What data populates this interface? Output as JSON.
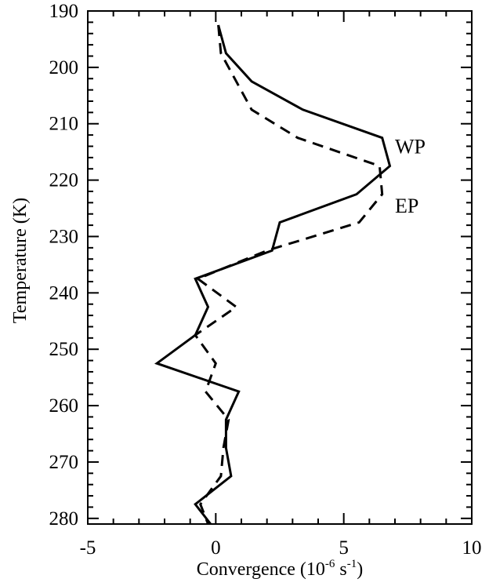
{
  "chart_data": {
    "type": "line",
    "xlabel": "Convergence (10",
    "xlabel_sup1": "-6",
    "xlabel_mid": " s",
    "xlabel_sup2": "-1",
    "xlabel_end": ")",
    "ylabel": "Temperature (K)",
    "xlim": [
      -5,
      10
    ],
    "ylim": [
      190,
      281
    ],
    "y_inverted": true,
    "x_major_ticks": [
      -5,
      0,
      5,
      10
    ],
    "x_minor_step": 1,
    "y_major_ticks": [
      190,
      200,
      210,
      220,
      230,
      240,
      250,
      260,
      270,
      280
    ],
    "y_minor_step": 2,
    "grid": false,
    "series": [
      {
        "name": "WP",
        "style": "solid",
        "color": "#000000",
        "points": [
          [
            0.1,
            192.5
          ],
          [
            0.4,
            197.5
          ],
          [
            1.4,
            202.5
          ],
          [
            3.4,
            207.5
          ],
          [
            6.5,
            212.5
          ],
          [
            6.8,
            217.5
          ],
          [
            5.5,
            222.5
          ],
          [
            2.5,
            227.5
          ],
          [
            2.2,
            232.5
          ],
          [
            -0.8,
            237.5
          ],
          [
            -0.3,
            242.5
          ],
          [
            -0.8,
            247.5
          ],
          [
            -2.3,
            252.5
          ],
          [
            0.9,
            257.5
          ],
          [
            0.4,
            262.5
          ],
          [
            0.4,
            267.5
          ],
          [
            0.6,
            272.5
          ],
          [
            -0.8,
            277.5
          ],
          [
            -0.2,
            281.0
          ]
        ]
      },
      {
        "name": "EP",
        "style": "dashed",
        "color": "#000000",
        "points": [
          [
            0.1,
            192.5
          ],
          [
            0.2,
            197.5
          ],
          [
            0.8,
            202.5
          ],
          [
            1.4,
            207.5
          ],
          [
            3.2,
            212.5
          ],
          [
            6.4,
            217.5
          ],
          [
            6.5,
            222.5
          ],
          [
            5.6,
            227.5
          ],
          [
            2.0,
            232.5
          ],
          [
            -0.7,
            237.5
          ],
          [
            0.8,
            242.5
          ],
          [
            -0.8,
            247.5
          ],
          [
            0.0,
            252.5
          ],
          [
            -0.4,
            257.5
          ],
          [
            0.5,
            262.5
          ],
          [
            0.3,
            267.5
          ],
          [
            0.2,
            272.5
          ],
          [
            -0.6,
            277.5
          ],
          [
            -0.3,
            281.0
          ]
        ]
      }
    ],
    "annotations": [
      {
        "text": "WP",
        "x": 7.0,
        "y": 214.0
      },
      {
        "text": "EP",
        "x": 7.0,
        "y": 224.5
      }
    ]
  }
}
